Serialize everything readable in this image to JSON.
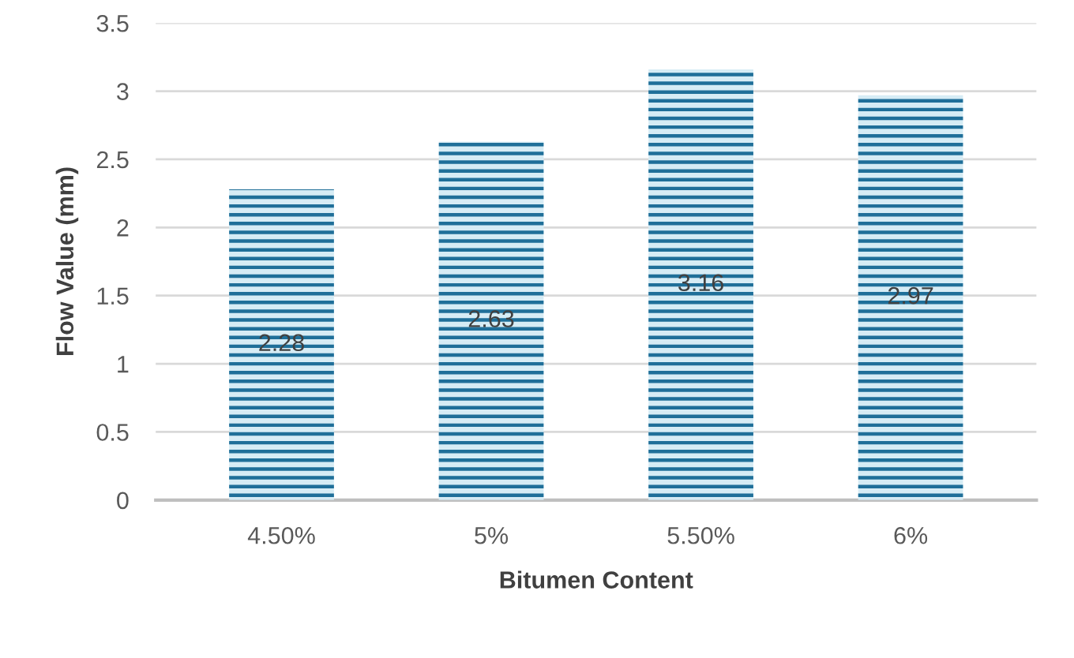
{
  "chart_data": {
    "type": "bar",
    "xlabel": "Bitumen Content",
    "ylabel": "Flow Value (mm)",
    "categories": [
      "4.50%",
      "5%",
      "5.50%",
      "6%"
    ],
    "values": [
      2.28,
      2.63,
      3.16,
      2.97
    ],
    "color": "#1f6f99",
    "ylim": [
      0,
      3.5
    ],
    "yticks": [
      0,
      0.5,
      1,
      1.5,
      2,
      2.5,
      3,
      3.5
    ],
    "grid": "y",
    "data_labels": true
  }
}
